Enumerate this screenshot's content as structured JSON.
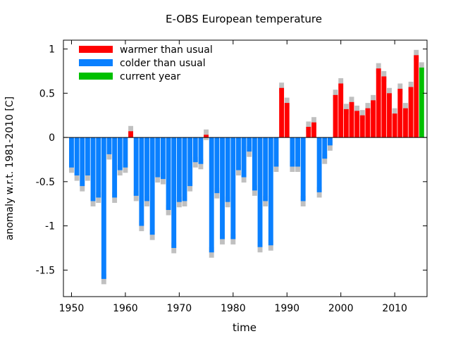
{
  "chart_data": {
    "type": "bar",
    "title": "E-OBS European temperature",
    "xlabel": "time",
    "ylabel": "anomaly w.r.t. 1981-2010 [C]",
    "xlim": [
      1948.5,
      2016
    ],
    "ylim": [
      -1.8,
      1.1
    ],
    "x_ticks": [
      1950,
      1960,
      1970,
      1980,
      1990,
      2000,
      2010
    ],
    "y_ticks": [
      1,
      0.5,
      0,
      -0.5,
      -1,
      -1.5
    ],
    "y_tick_labels": [
      "1",
      "0.5",
      "0",
      "-0.5",
      "-1",
      "-1.5"
    ],
    "legend_position": "top-left",
    "legend": [
      {
        "label": "warmer than usual",
        "color": "#ff0000"
      },
      {
        "label": "colder than usual",
        "color": "#0a80ff"
      },
      {
        "label": "current year",
        "color": "#00c000"
      }
    ],
    "uncertainty_color": "#c0c0c0",
    "uncertainty_halfwidth": 0.06,
    "current_year": 2015,
    "years": [
      1950,
      1951,
      1952,
      1953,
      1954,
      1955,
      1956,
      1957,
      1958,
      1959,
      1960,
      1961,
      1962,
      1963,
      1964,
      1965,
      1966,
      1967,
      1968,
      1969,
      1970,
      1971,
      1972,
      1973,
      1974,
      1975,
      1976,
      1977,
      1978,
      1979,
      1980,
      1981,
      1982,
      1983,
      1984,
      1985,
      1986,
      1987,
      1988,
      1989,
      1990,
      1991,
      1992,
      1993,
      1994,
      1995,
      1996,
      1997,
      1998,
      1999,
      2000,
      2001,
      2002,
      2003,
      2004,
      2005,
      2006,
      2007,
      2008,
      2009,
      2010,
      2011,
      2012,
      2013,
      2014,
      2015
    ],
    "values": [
      -0.34,
      -0.43,
      -0.55,
      -0.43,
      -0.72,
      -0.68,
      -1.6,
      -0.19,
      -0.68,
      -0.37,
      -0.34,
      0.07,
      -0.66,
      -1.0,
      -0.72,
      -1.1,
      -0.45,
      -0.47,
      -0.82,
      -1.25,
      -0.73,
      -0.72,
      -0.55,
      -0.28,
      -0.3,
      0.03,
      -1.3,
      -0.63,
      -1.15,
      -0.73,
      -1.15,
      -0.37,
      -0.45,
      -0.16,
      -0.6,
      -1.24,
      -0.72,
      -1.22,
      -0.33,
      0.56,
      0.39,
      -0.33,
      -0.33,
      -0.72,
      0.12,
      0.17,
      -0.62,
      -0.24,
      -0.09,
      0.48,
      0.61,
      0.32,
      0.4,
      0.3,
      0.25,
      0.33,
      0.42,
      0.78,
      0.69,
      0.5,
      0.27,
      0.55,
      0.33,
      0.57,
      0.93,
      0.79
    ]
  }
}
